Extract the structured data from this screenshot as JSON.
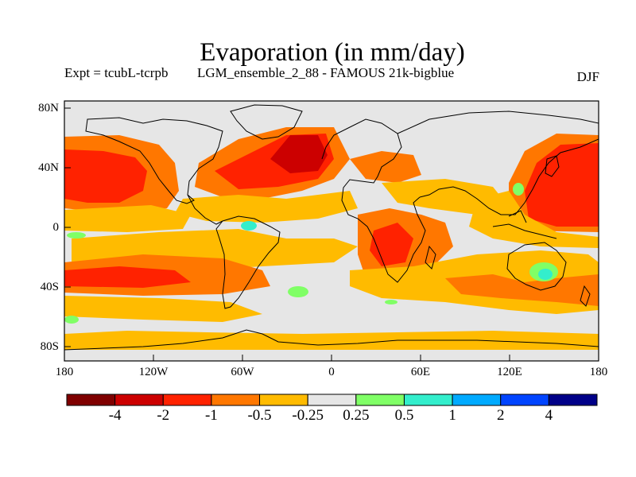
{
  "header": {
    "title": "Evaporation (in mm/day)",
    "left_subtitle": "Expt = tcubL-tcrpb",
    "center_subtitle": "LGM_ensemble_2_88 - FAMOUS 21k-bigblue",
    "right_subtitle": "DJF"
  },
  "map": {
    "lat_ticks": [
      "80N",
      "40N",
      "0",
      "40S",
      "80S"
    ],
    "lon_ticks": [
      "180",
      "120W",
      "60W",
      "0",
      "60E",
      "120E",
      "180"
    ]
  },
  "colorbar": {
    "colors": [
      "#7f0000",
      "#cc0000",
      "#ff2200",
      "#ff7700",
      "#ffbb00",
      "#e6e6e6",
      "#80ff66",
      "#33eecc",
      "#00aaff",
      "#0044ff",
      "#000088"
    ],
    "labels": [
      "-4",
      "-2",
      "-1",
      "-0.5",
      "-0.25",
      "0.25",
      "0.5",
      "1",
      "2",
      "4"
    ]
  }
}
